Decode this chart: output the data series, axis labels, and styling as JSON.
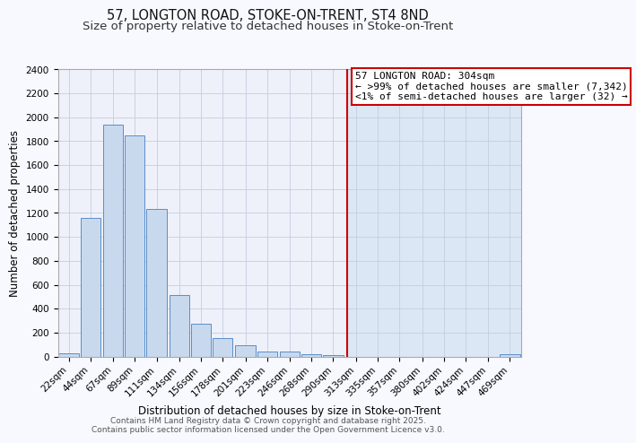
{
  "title": "57, LONGTON ROAD, STOKE-ON-TRENT, ST4 8ND",
  "subtitle": "Size of property relative to detached houses in Stoke-on-Trent",
  "xlabel": "Distribution of detached houses by size in Stoke-on-Trent",
  "ylabel": "Number of detached properties",
  "footer1": "Contains HM Land Registry data © Crown copyright and database right 2025.",
  "footer2": "Contains public sector information licensed under the Open Government Licence v3.0.",
  "bar_labels": [
    "22sqm",
    "44sqm",
    "67sqm",
    "89sqm",
    "111sqm",
    "134sqm",
    "156sqm",
    "178sqm",
    "201sqm",
    "223sqm",
    "246sqm",
    "268sqm",
    "290sqm",
    "313sqm",
    "335sqm",
    "357sqm",
    "380sqm",
    "402sqm",
    "424sqm",
    "447sqm",
    "469sqm"
  ],
  "bar_values": [
    25,
    1155,
    1940,
    1850,
    1230,
    515,
    275,
    155,
    95,
    45,
    45,
    20,
    10,
    0,
    0,
    0,
    0,
    0,
    0,
    0,
    20
  ],
  "bar_color": "#c8d9ee",
  "bar_edge_color": "#5b8dc8",
  "background_color": "#f8f9ff",
  "plot_bg_color": "#eef1fa",
  "right_bg_color": "#dce7f5",
  "grid_color": "#c5cde0",
  "vline_color": "#cc0000",
  "vline_x": 304,
  "ylim": [
    0,
    2400
  ],
  "annotation_text": "57 LONGTON ROAD: 304sqm\n← >99% of detached houses are smaller (7,342)\n<1% of semi-detached houses are larger (32) →",
  "annotation_box_color": "#cc0000",
  "annotation_box_bg": "#ffffff",
  "title_fontsize": 10.5,
  "subtitle_fontsize": 9.5,
  "tick_fontsize": 7.5,
  "ylabel_fontsize": 8.5,
  "xlabel_fontsize": 8.5,
  "footer_fontsize": 6.5,
  "annotation_fontsize": 8,
  "bin_width": 22
}
